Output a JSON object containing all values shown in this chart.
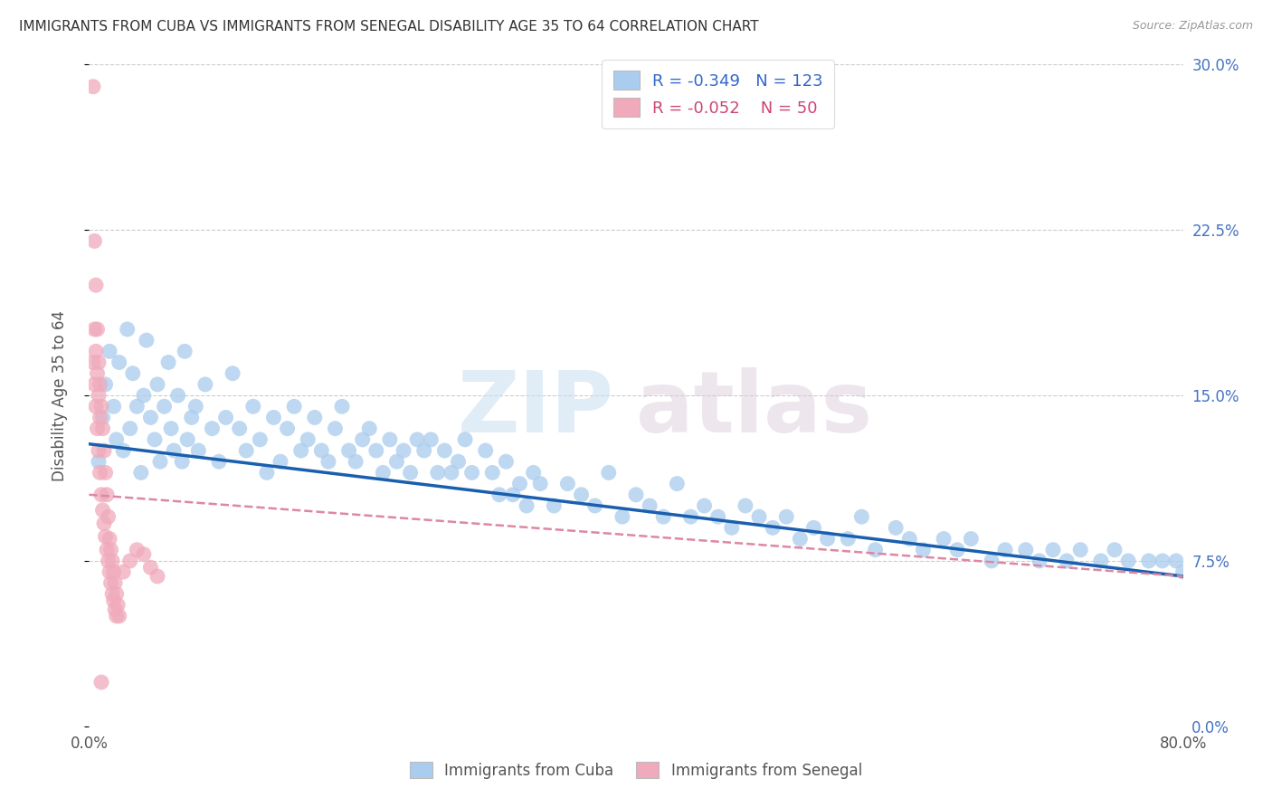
{
  "title": "IMMIGRANTS FROM CUBA VS IMMIGRANTS FROM SENEGAL DISABILITY AGE 35 TO 64 CORRELATION CHART",
  "source": "Source: ZipAtlas.com",
  "ylabel": "Disability Age 35 to 64",
  "x_min": 0.0,
  "x_max": 0.8,
  "y_min": 0.0,
  "y_max": 0.3,
  "x_ticks": [
    0.0,
    0.1,
    0.2,
    0.3,
    0.4,
    0.5,
    0.6,
    0.7,
    0.8
  ],
  "y_ticks": [
    0.0,
    0.075,
    0.15,
    0.225,
    0.3
  ],
  "y_tick_labels_right": [
    "0.0%",
    "7.5%",
    "15.0%",
    "22.5%",
    "30.0%"
  ],
  "cuba_color": "#aaccee",
  "senegal_color": "#f0aabb",
  "cuba_line_color": "#1a5fad",
  "senegal_line_color": "#dd88a0",
  "cuba_R": -0.349,
  "cuba_N": 123,
  "senegal_R": -0.052,
  "senegal_N": 50,
  "background_color": "#ffffff",
  "grid_color": "#cccccc",
  "watermark_zip": "ZIP",
  "watermark_atlas": "atlas",
  "legend_label_cuba": "Immigrants from Cuba",
  "legend_label_senegal": "Immigrants from Senegal",
  "cuba_line_x0": 0.0,
  "cuba_line_y0": 0.128,
  "cuba_line_x1": 0.8,
  "cuba_line_y1": 0.068,
  "senegal_line_x0": 0.0,
  "senegal_line_y0": 0.105,
  "senegal_line_x1": 0.8,
  "senegal_line_y1": 0.068,
  "cuba_scatter_x": [
    0.007,
    0.01,
    0.012,
    0.015,
    0.018,
    0.02,
    0.022,
    0.025,
    0.028,
    0.03,
    0.032,
    0.035,
    0.038,
    0.04,
    0.042,
    0.045,
    0.048,
    0.05,
    0.052,
    0.055,
    0.058,
    0.06,
    0.062,
    0.065,
    0.068,
    0.07,
    0.072,
    0.075,
    0.078,
    0.08,
    0.085,
    0.09,
    0.095,
    0.1,
    0.105,
    0.11,
    0.115,
    0.12,
    0.125,
    0.13,
    0.135,
    0.14,
    0.145,
    0.15,
    0.155,
    0.16,
    0.165,
    0.17,
    0.175,
    0.18,
    0.185,
    0.19,
    0.195,
    0.2,
    0.205,
    0.21,
    0.215,
    0.22,
    0.225,
    0.23,
    0.235,
    0.24,
    0.245,
    0.25,
    0.255,
    0.26,
    0.265,
    0.27,
    0.275,
    0.28,
    0.29,
    0.295,
    0.3,
    0.305,
    0.31,
    0.315,
    0.32,
    0.325,
    0.33,
    0.34,
    0.35,
    0.36,
    0.37,
    0.38,
    0.39,
    0.4,
    0.41,
    0.42,
    0.43,
    0.44,
    0.45,
    0.46,
    0.47,
    0.48,
    0.49,
    0.5,
    0.51,
    0.52,
    0.53,
    0.54,
    0.555,
    0.565,
    0.575,
    0.59,
    0.6,
    0.61,
    0.625,
    0.635,
    0.645,
    0.66,
    0.67,
    0.685,
    0.695,
    0.705,
    0.715,
    0.725,
    0.74,
    0.75,
    0.76,
    0.775,
    0.785,
    0.795,
    0.8
  ],
  "cuba_scatter_y": [
    0.12,
    0.14,
    0.155,
    0.17,
    0.145,
    0.13,
    0.165,
    0.125,
    0.18,
    0.135,
    0.16,
    0.145,
    0.115,
    0.15,
    0.175,
    0.14,
    0.13,
    0.155,
    0.12,
    0.145,
    0.165,
    0.135,
    0.125,
    0.15,
    0.12,
    0.17,
    0.13,
    0.14,
    0.145,
    0.125,
    0.155,
    0.135,
    0.12,
    0.14,
    0.16,
    0.135,
    0.125,
    0.145,
    0.13,
    0.115,
    0.14,
    0.12,
    0.135,
    0.145,
    0.125,
    0.13,
    0.14,
    0.125,
    0.12,
    0.135,
    0.145,
    0.125,
    0.12,
    0.13,
    0.135,
    0.125,
    0.115,
    0.13,
    0.12,
    0.125,
    0.115,
    0.13,
    0.125,
    0.13,
    0.115,
    0.125,
    0.115,
    0.12,
    0.13,
    0.115,
    0.125,
    0.115,
    0.105,
    0.12,
    0.105,
    0.11,
    0.1,
    0.115,
    0.11,
    0.1,
    0.11,
    0.105,
    0.1,
    0.115,
    0.095,
    0.105,
    0.1,
    0.095,
    0.11,
    0.095,
    0.1,
    0.095,
    0.09,
    0.1,
    0.095,
    0.09,
    0.095,
    0.085,
    0.09,
    0.085,
    0.085,
    0.095,
    0.08,
    0.09,
    0.085,
    0.08,
    0.085,
    0.08,
    0.085,
    0.075,
    0.08,
    0.08,
    0.075,
    0.08,
    0.075,
    0.08,
    0.075,
    0.08,
    0.075,
    0.075,
    0.075,
    0.075,
    0.07
  ],
  "senegal_scatter_x": [
    0.003,
    0.004,
    0.005,
    0.006,
    0.007,
    0.008,
    0.009,
    0.01,
    0.011,
    0.012,
    0.013,
    0.014,
    0.015,
    0.016,
    0.017,
    0.018,
    0.019,
    0.02,
    0.021,
    0.022,
    0.003,
    0.004,
    0.005,
    0.006,
    0.007,
    0.008,
    0.009,
    0.01,
    0.011,
    0.012,
    0.013,
    0.014,
    0.015,
    0.016,
    0.017,
    0.018,
    0.019,
    0.02,
    0.025,
    0.03,
    0.035,
    0.04,
    0.045,
    0.05,
    0.004,
    0.005,
    0.006,
    0.007,
    0.008,
    0.009
  ],
  "senegal_scatter_y": [
    0.29,
    0.22,
    0.2,
    0.18,
    0.165,
    0.155,
    0.145,
    0.135,
    0.125,
    0.115,
    0.105,
    0.095,
    0.085,
    0.08,
    0.075,
    0.07,
    0.065,
    0.06,
    0.055,
    0.05,
    0.165,
    0.155,
    0.145,
    0.135,
    0.125,
    0.115,
    0.105,
    0.098,
    0.092,
    0.086,
    0.08,
    0.075,
    0.07,
    0.065,
    0.06,
    0.057,
    0.053,
    0.05,
    0.07,
    0.075,
    0.08,
    0.078,
    0.072,
    0.068,
    0.18,
    0.17,
    0.16,
    0.15,
    0.14,
    0.02
  ]
}
